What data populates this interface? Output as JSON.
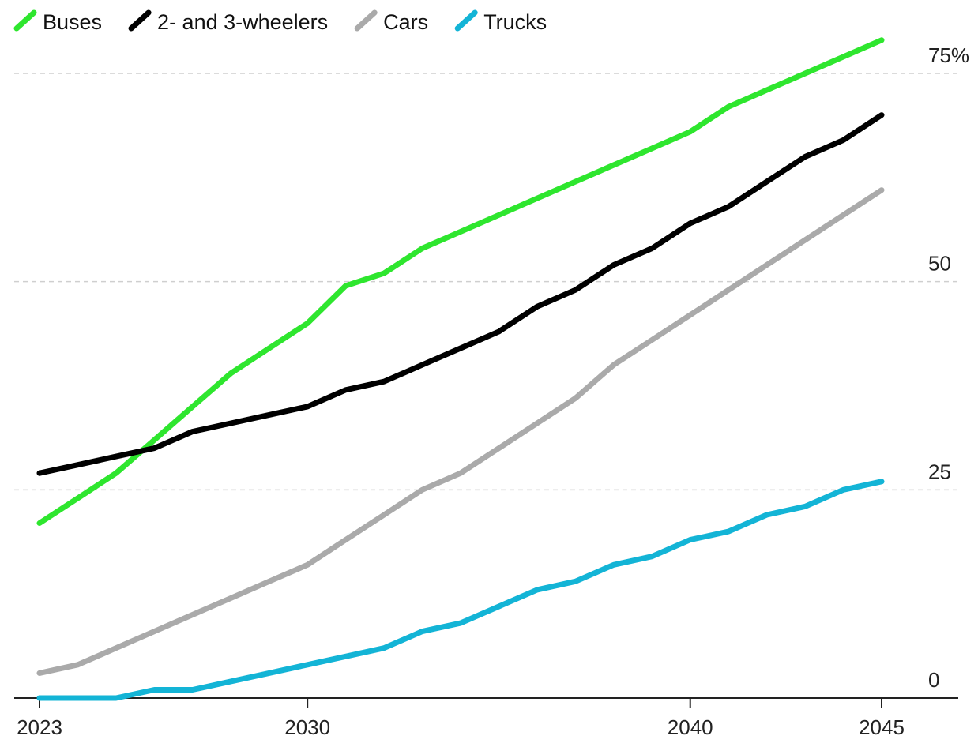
{
  "chart_data": {
    "type": "line",
    "x": [
      2023,
      2024,
      2025,
      2026,
      2027,
      2028,
      2029,
      2030,
      2031,
      2032,
      2033,
      2034,
      2035,
      2036,
      2037,
      2038,
      2039,
      2040,
      2041,
      2042,
      2043,
      2044,
      2045
    ],
    "series": [
      {
        "name": "Buses",
        "color": "#2ee62e",
        "values": [
          21,
          24,
          27,
          31,
          35,
          39,
          42,
          45,
          49.5,
          51,
          54,
          56,
          58,
          60,
          62,
          64,
          66,
          68,
          71,
          73,
          75,
          77,
          79
        ]
      },
      {
        "name": "2- and 3-wheelers",
        "color": "#000000",
        "values": [
          27,
          28,
          29,
          30,
          32,
          33,
          34,
          35,
          37,
          38,
          40,
          42,
          44,
          47,
          49,
          52,
          54,
          57,
          59,
          62,
          65,
          67,
          70
        ]
      },
      {
        "name": "Cars",
        "color": "#aaaaaa",
        "values": [
          3,
          4,
          6,
          8,
          10,
          12,
          14,
          16,
          19,
          22,
          25,
          27,
          30,
          33,
          36,
          40,
          43,
          46,
          49,
          52,
          55,
          58,
          61
        ]
      },
      {
        "name": "Trucks",
        "color": "#13b4d6",
        "values": [
          0,
          0,
          0,
          1,
          1,
          2,
          3,
          4,
          5,
          6,
          8,
          9,
          11,
          13,
          14,
          16,
          17,
          19,
          20,
          22,
          23,
          25,
          26
        ]
      }
    ],
    "x_ticks": [
      {
        "value": 2023,
        "label": "2023"
      },
      {
        "value": 2030,
        "label": "2030"
      },
      {
        "value": 2040,
        "label": "2040"
      },
      {
        "value": 2045,
        "label": "2045"
      }
    ],
    "y_ticks": [
      {
        "value": 0,
        "label": "0"
      },
      {
        "value": 25,
        "label": "25"
      },
      {
        "value": 50,
        "label": "50"
      },
      {
        "value": 75,
        "label": "75%"
      }
    ],
    "xlim": [
      2023,
      2045
    ],
    "ylim": [
      0,
      75
    ],
    "grid": "horizontal-dashed",
    "legend_position": "top-left"
  }
}
